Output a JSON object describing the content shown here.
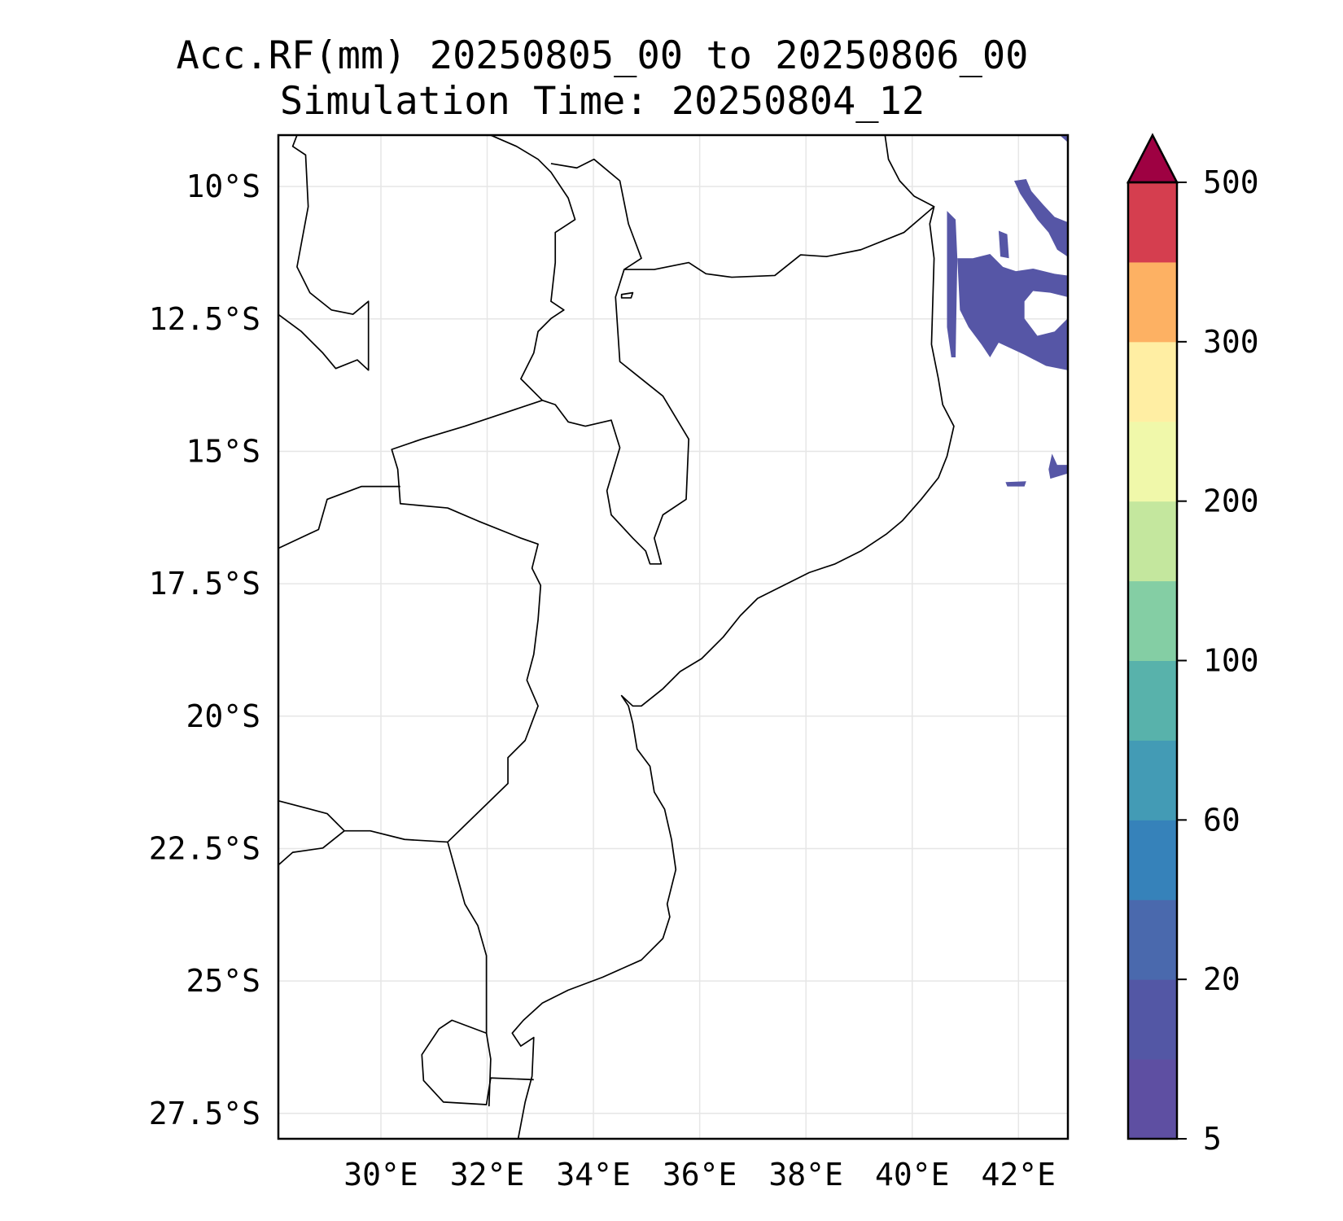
{
  "chart_data": {
    "type": "map",
    "title": "Acc.RF(mm) 20250805_00 to 20250806_00",
    "subtitle": "Simulation Time: 20250804_12",
    "lon_range": [
      28.07,
      42.93
    ],
    "lat_range": [
      -27.98,
      -9.03
    ],
    "lon_ticks": [
      30,
      32,
      34,
      36,
      38,
      40,
      42
    ],
    "lon_tick_labels": [
      "30°E",
      "32°E",
      "34°E",
      "36°E",
      "38°E",
      "40°E",
      "42°E"
    ],
    "lat_ticks": [
      -10,
      -12.5,
      -15,
      -17.5,
      -20,
      -22.5,
      -25,
      -27.5
    ],
    "lat_tick_labels": [
      "10°S",
      "12.5°S",
      "15°S",
      "17.5°S",
      "20°S",
      "22.5°S",
      "25°S",
      "27.5°S"
    ],
    "grid": true,
    "colorbar": {
      "levels": [
        5,
        10,
        20,
        40,
        60,
        80,
        100,
        150,
        200,
        250,
        300,
        400,
        500
      ],
      "tick_values": [
        5,
        20,
        60,
        100,
        200,
        300,
        500
      ],
      "tick_labels": [
        "5",
        "20",
        "60",
        "100",
        "200",
        "300",
        "500"
      ],
      "colors": [
        "#5e4fa2",
        "#5357a5",
        "#4a69ad",
        "#3682ba",
        "#439bb5",
        "#58b2ab",
        "#84cea4",
        "#c4e79e",
        "#f0f8aa",
        "#ffeea3",
        "#fdb163",
        "#d53e4f"
      ],
      "extend_color": "#9e0142",
      "extend": "max"
    },
    "rain_color": "#5656a6"
  }
}
